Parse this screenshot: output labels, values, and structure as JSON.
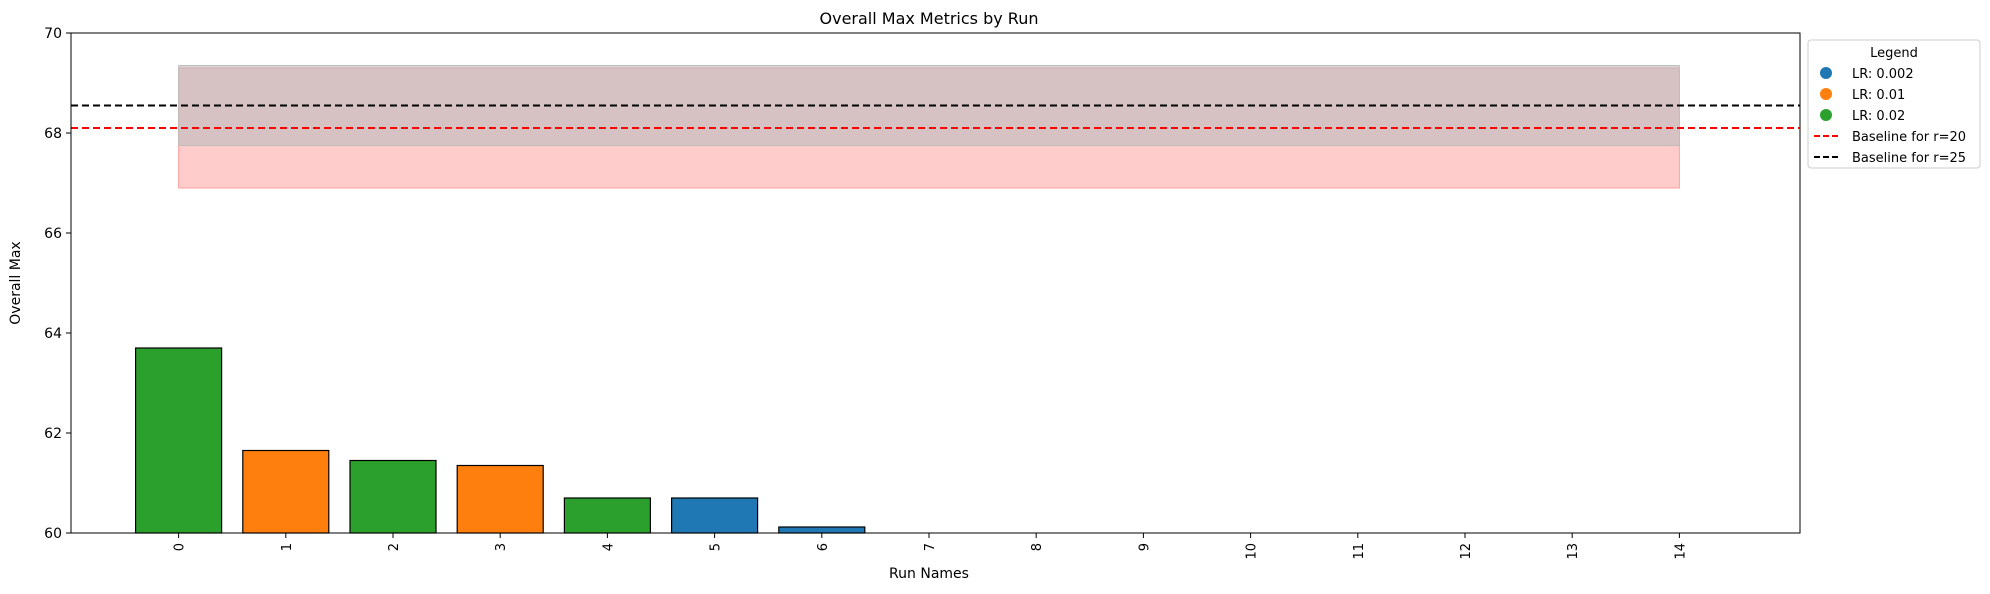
{
  "chart_data": {
    "type": "bar",
    "title": "Overall Max Metrics by Run",
    "xlabel": "Run Names",
    "ylabel": "Overall Max",
    "ylim": [
      60,
      70
    ],
    "yticks": [
      60,
      62,
      64,
      66,
      68,
      70
    ],
    "categories": [
      "0",
      "1",
      "2",
      "3",
      "4",
      "5",
      "6",
      "7",
      "8",
      "9",
      "10",
      "11",
      "12",
      "13",
      "14"
    ],
    "values": [
      63.7,
      61.65,
      61.45,
      61.35,
      60.7,
      60.7,
      60.12,
      60,
      60,
      60,
      60,
      60,
      60,
      60,
      60
    ],
    "bar_lr": [
      "0.02",
      "0.01",
      "0.02",
      "0.01",
      "0.02",
      "0.002",
      "0.002",
      null,
      null,
      null,
      null,
      null,
      null,
      null,
      null
    ],
    "colors": {
      "0.002": "#1f77b4",
      "0.01": "#ff7f0e",
      "0.02": "#2ca02c"
    },
    "baselines": [
      {
        "label": "Baseline for r=20",
        "value": 68.1,
        "color": "#ff0000",
        "band": [
          66.9,
          69.3
        ],
        "band_color": "#ff9999"
      },
      {
        "label": "Baseline for r=25",
        "value": 68.55,
        "color": "#000000",
        "band": [
          67.75,
          69.35
        ],
        "band_color": "#bbbbbb"
      }
    ],
    "legend": {
      "title": "Legend",
      "position": "outside-top-right",
      "entries": [
        {
          "label": "LR: 0.002",
          "kind": "marker",
          "color": "#1f77b4"
        },
        {
          "label": "LR: 0.01",
          "kind": "marker",
          "color": "#ff7f0e"
        },
        {
          "label": "LR: 0.02",
          "kind": "marker",
          "color": "#2ca02c"
        },
        {
          "label": "Baseline for r=20",
          "kind": "dashed-line",
          "color": "#ff0000"
        },
        {
          "label": "Baseline for r=25",
          "kind": "dashed-line",
          "color": "#000000"
        }
      ]
    },
    "grid": false
  }
}
